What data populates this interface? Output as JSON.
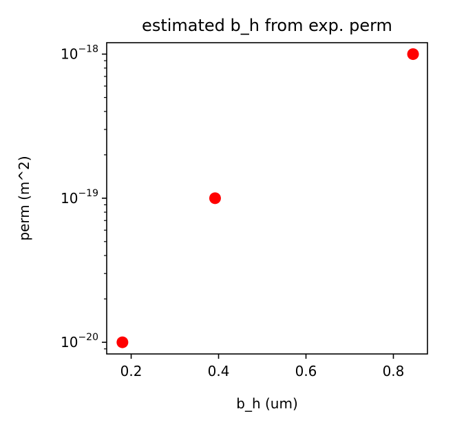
{
  "chart_data": {
    "type": "scatter",
    "title": "estimated b_h from exp. perm",
    "xlabel": "b_h (um)",
    "ylabel": "perm (m^2)",
    "xlim": [
      0.144,
      0.878
    ],
    "ylim": [
      8.3e-21,
      1.2e-18
    ],
    "yscale": "log",
    "grid": false,
    "marker_color": "#ff0000",
    "x_ticks": [
      {
        "value": 0.2,
        "label": "0.2"
      },
      {
        "value": 0.4,
        "label": "0.4"
      },
      {
        "value": 0.6,
        "label": "0.6"
      },
      {
        "value": 0.8,
        "label": "0.8"
      }
    ],
    "y_ticks": [
      {
        "value": 1e-20,
        "base": "10",
        "exp": "−20"
      },
      {
        "value": 1e-19,
        "base": "10",
        "exp": "−19"
      },
      {
        "value": 1e-18,
        "base": "10",
        "exp": "−18"
      }
    ],
    "points": [
      {
        "x": 0.18,
        "y": 1e-20
      },
      {
        "x": 0.392,
        "y": 1e-19
      },
      {
        "x": 0.845,
        "y": 1e-18
      }
    ]
  }
}
